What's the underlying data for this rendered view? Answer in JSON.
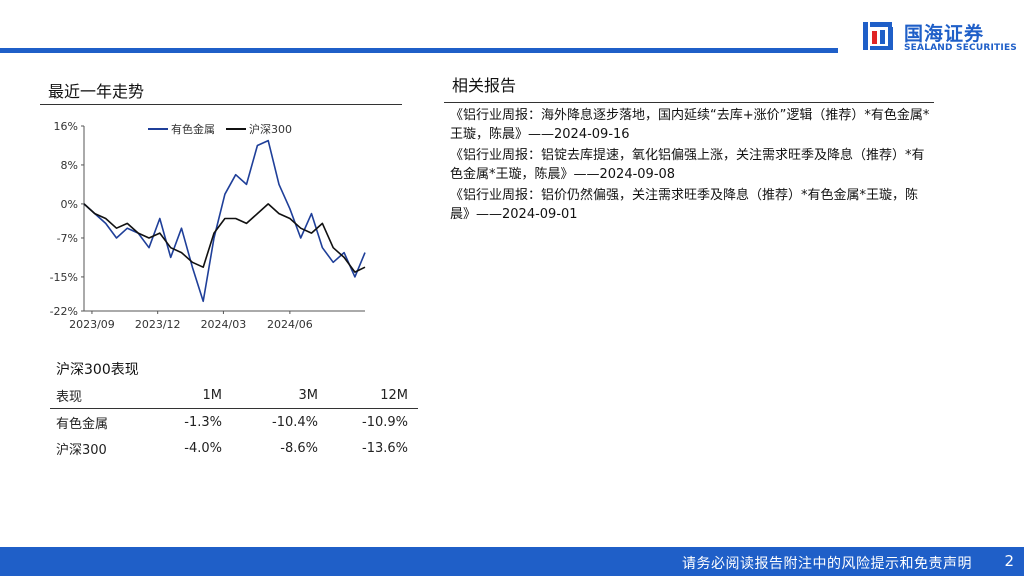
{
  "header": {
    "logo_cn": "国海证券",
    "logo_en": "SEALAND SECURITIES",
    "brand_color": "#1f5fc8"
  },
  "left": {
    "section_title": "最近一年走势",
    "chart_data": {
      "type": "line",
      "ylim": [
        -22,
        16
      ],
      "y_ticks": [
        "16%",
        "8%",
        "0%",
        "-7%",
        "-15%",
        "-22%"
      ],
      "y_tick_values": [
        16,
        8,
        0,
        -7,
        -15,
        -22
      ],
      "x_ticks": [
        "2023/09",
        "2023/12",
        "2024/03",
        "2024/06"
      ],
      "x_tick_values": [
        "2023-09-01",
        "2023-12-01",
        "2024-03-01",
        "2024-06-01"
      ],
      "x_range": [
        "2023-08-21",
        "2024-09-13"
      ],
      "series": [
        {
          "name": "有色金属",
          "color": "#1f3f99",
          "x": [
            "2023-08-21",
            "2023-09-05",
            "2023-09-20",
            "2023-10-05",
            "2023-10-20",
            "2023-11-04",
            "2023-11-19",
            "2023-12-04",
            "2023-12-19",
            "2024-01-03",
            "2024-01-18",
            "2024-02-02",
            "2024-02-17",
            "2024-03-03",
            "2024-03-18",
            "2024-04-02",
            "2024-04-17",
            "2024-05-02",
            "2024-05-17",
            "2024-06-01",
            "2024-06-16",
            "2024-07-01",
            "2024-07-16",
            "2024-07-31",
            "2024-08-15",
            "2024-08-30",
            "2024-09-13"
          ],
          "y": [
            0,
            -2,
            -4,
            -7,
            -5,
            -6,
            -9,
            -3,
            -11,
            -5,
            -13,
            -20,
            -7,
            2,
            6,
            4,
            12,
            13,
            4,
            -1,
            -7,
            -2,
            -9,
            -12,
            -10,
            -15,
            -10
          ]
        },
        {
          "name": "沪深300",
          "color": "#111111",
          "x": [
            "2023-08-21",
            "2023-09-05",
            "2023-09-20",
            "2023-10-05",
            "2023-10-20",
            "2023-11-04",
            "2023-11-19",
            "2023-12-04",
            "2023-12-19",
            "2024-01-03",
            "2024-01-18",
            "2024-02-02",
            "2024-02-17",
            "2024-03-03",
            "2024-03-18",
            "2024-04-02",
            "2024-04-17",
            "2024-05-02",
            "2024-05-17",
            "2024-06-01",
            "2024-06-16",
            "2024-07-01",
            "2024-07-16",
            "2024-07-31",
            "2024-08-15",
            "2024-08-30",
            "2024-09-13"
          ],
          "y": [
            0,
            -2,
            -3,
            -5,
            -4,
            -6,
            -7,
            -6,
            -9,
            -10,
            -12,
            -13,
            -6,
            -3,
            -3,
            -4,
            -2,
            0,
            -2,
            -3,
            -5,
            -6,
            -4,
            -9,
            -11,
            -14,
            -13
          ]
        }
      ]
    },
    "perf_title": "沪深300表现",
    "table": {
      "headers": [
        "表现",
        "1M",
        "3M",
        "12M"
      ],
      "rows": [
        [
          "有色金属",
          "-1.3%",
          "-10.4%",
          "-10.9%"
        ],
        [
          "沪深300",
          "-4.0%",
          "-8.6%",
          "-13.6%"
        ]
      ]
    }
  },
  "right": {
    "section_title": "相关报告",
    "reports": [
      "《铝行业周报：海外降息逐步落地，国内延续“去库+涨价”逻辑（推荐）*有色金属*王璇，陈晨》——2024-09-16",
      "《铝行业周报：铝锭去库提速，氧化铝偏强上涨，关注需求旺季及降息（推荐）*有色金属*王璇，陈晨》——2024-09-08",
      "《铝行业周报：铝价仍然偏强，关注需求旺季及降息（推荐）*有色金属*王璇，陈晨》——2024-09-01"
    ]
  },
  "footer": {
    "disclaimer": "请务必阅读报告附注中的风险提示和免责声明",
    "page": "2"
  }
}
